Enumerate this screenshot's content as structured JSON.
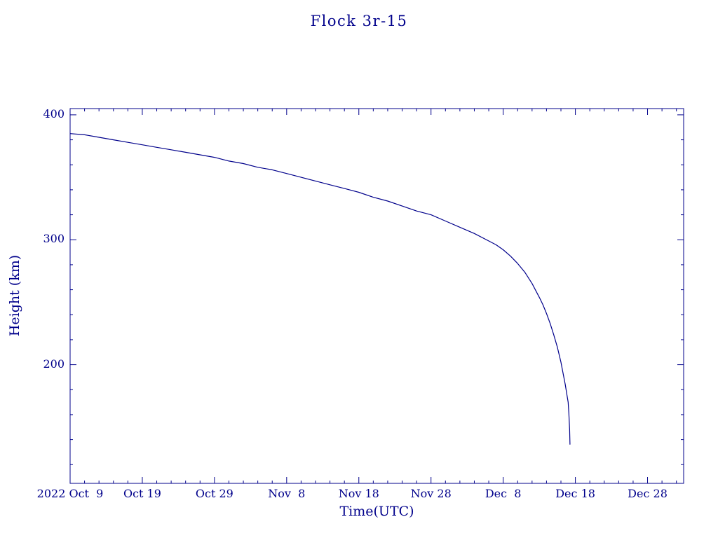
{
  "page": {
    "background": "#ffffff",
    "text_color": "#00008B"
  },
  "chart_data": {
    "type": "line",
    "title": "Flock 3r-15",
    "xlabel": "Time(UTC)",
    "ylabel": "Height (km)",
    "line_color": "#00008B",
    "axis_color": "#00008B",
    "grid": false,
    "legend": null,
    "x_unit": "days since first x tick (2022 Oct 9)",
    "xlim": [
      0,
      85
    ],
    "ylim": [
      105,
      405
    ],
    "x_major_ticks": [
      0,
      10,
      20,
      30,
      40,
      50,
      60,
      70,
      80
    ],
    "x_tick_labels": [
      "2022 Oct  9",
      "Oct 19",
      "Oct 29",
      "Nov  8",
      "Nov 18",
      "Nov 28",
      "Dec  8",
      "Dec 18",
      "Dec 28"
    ],
    "x_minor_step": 2,
    "y_major_ticks": [
      200,
      300,
      400
    ],
    "y_tick_labels": [
      "200",
      "300",
      "400"
    ],
    "y_minor_step": 20,
    "series": [
      {
        "name": "Flock 3r-15 orbital height",
        "x": [
          0,
          2,
          4,
          6,
          8,
          10,
          12,
          14,
          16,
          18,
          20,
          22,
          24,
          26,
          28,
          30,
          32,
          34,
          36,
          38,
          40,
          42,
          44,
          46,
          48,
          50,
          52,
          54,
          56,
          58,
          59,
          60,
          61,
          62,
          63,
          64,
          65,
          65.5,
          66,
          66.5,
          67,
          67.5,
          68,
          68.3,
          68.6,
          68.8,
          69,
          69.1,
          69.2,
          69.25
        ],
        "y": [
          385,
          384,
          382,
          380,
          378,
          376,
          374,
          372,
          370,
          368,
          366,
          363,
          361,
          358,
          356,
          353,
          350,
          347,
          344,
          341,
          338,
          334,
          331,
          327,
          323,
          320,
          315,
          310,
          305,
          299,
          296,
          292,
          287,
          281,
          274,
          265,
          254,
          248,
          241,
          233,
          224,
          214,
          202,
          193,
          184,
          177,
          170,
          161,
          148,
          136
        ]
      }
    ]
  }
}
